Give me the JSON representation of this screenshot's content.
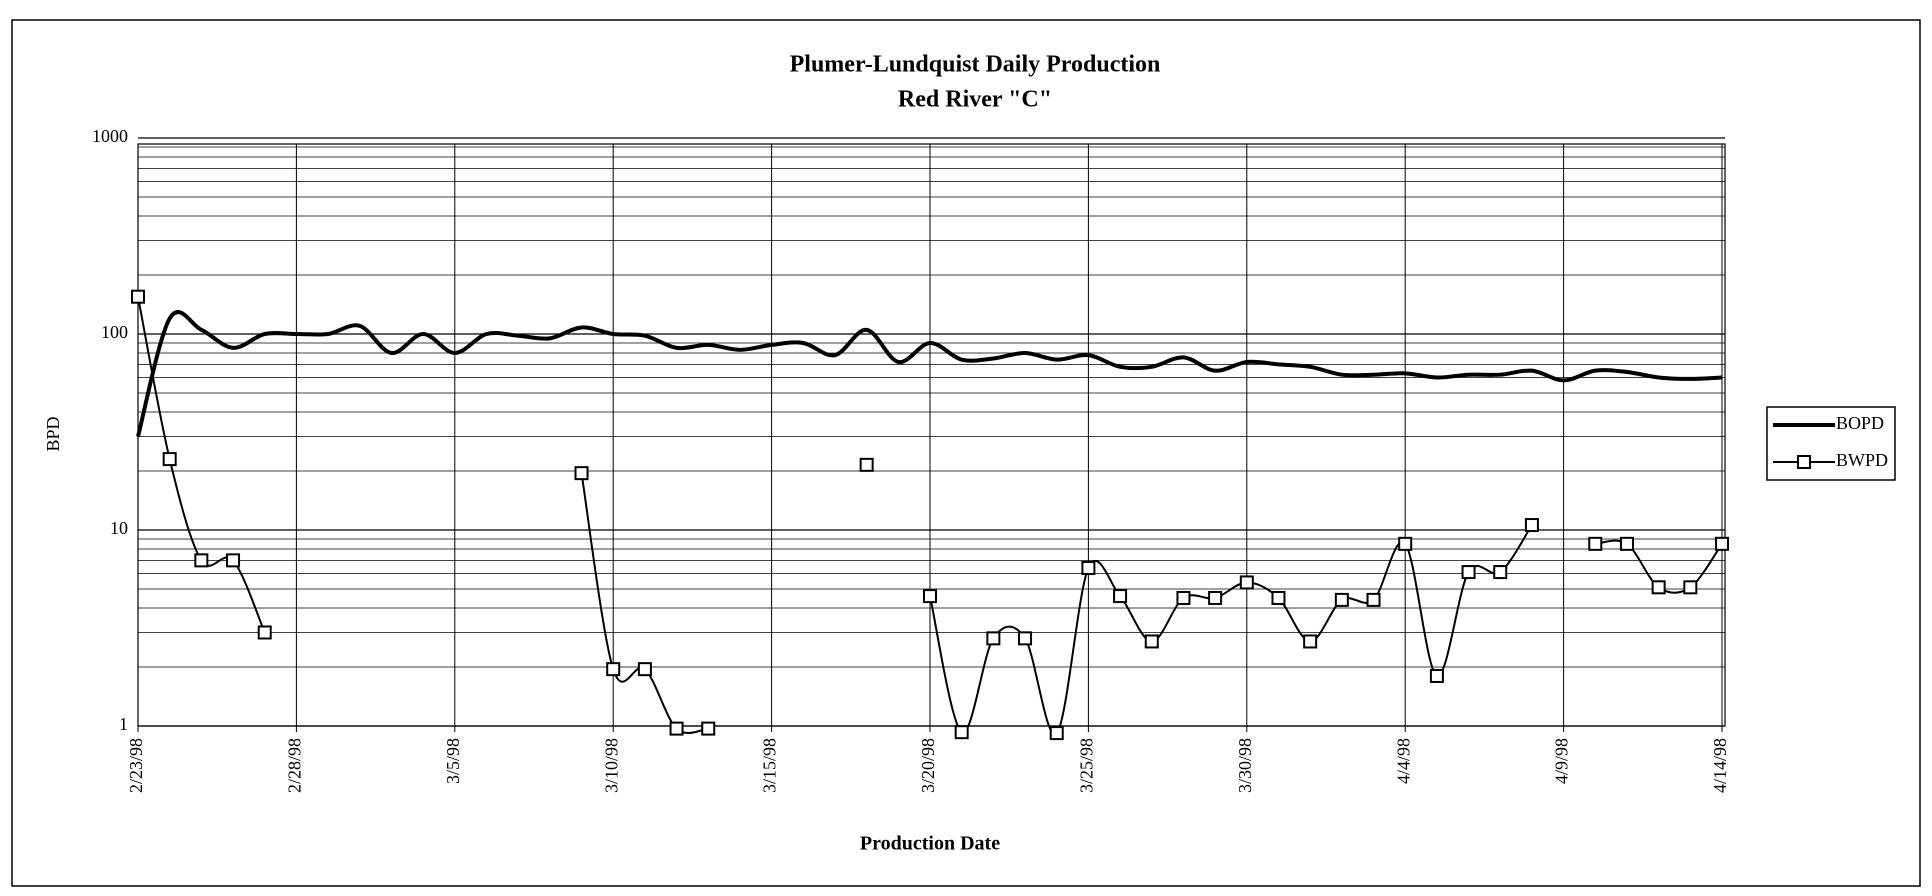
{
  "chart_data": {
    "type": "line",
    "title": "Plumer-Lundquist Daily Production",
    "subtitle": "Red River \"C\"",
    "y_label": "BPD",
    "x_label": "Production Date",
    "categories": [
      "2/23/98",
      null,
      null,
      null,
      null,
      "2/28/98",
      null,
      null,
      null,
      null,
      "3/5/98",
      null,
      null,
      null,
      null,
      "3/10/98",
      null,
      null,
      null,
      null,
      "3/15/98",
      null,
      null,
      null,
      null,
      "3/20/98",
      null,
      null,
      null,
      null,
      "3/25/98",
      null,
      null,
      null,
      null,
      "3/30/98",
      null,
      null,
      null,
      null,
      "4/4/98",
      null,
      null,
      null,
      null,
      "4/9/98",
      null,
      null,
      null,
      null,
      "4/14/98"
    ],
    "series": [
      {
        "name": "BOPD",
        "color": "#000000",
        "marker": "none",
        "values": [
          30,
          120,
          105,
          85,
          100,
          100,
          100,
          110,
          80,
          100,
          80,
          100,
          98,
          95,
          108,
          100,
          98,
          85,
          88,
          83,
          88,
          90,
          78,
          105,
          72,
          90,
          74,
          75,
          80,
          74,
          78,
          68,
          68,
          76,
          65,
          72,
          70,
          68,
          62,
          62,
          63,
          60,
          62,
          62,
          65,
          58,
          65,
          64,
          60,
          59,
          60
        ]
      },
      {
        "name": "BWPD",
        "color": "#000000",
        "marker": "square",
        "values": [
          155,
          23,
          7,
          7,
          3,
          null,
          null,
          null,
          null,
          null,
          null,
          null,
          null,
          null,
          19.5,
          1.95,
          1.95,
          0.97,
          0.97,
          null,
          null,
          null,
          null,
          21.5,
          null,
          4.6,
          0.93,
          2.8,
          2.8,
          0.92,
          6.4,
          4.6,
          2.7,
          4.5,
          4.5,
          5.4,
          4.5,
          2.7,
          4.4,
          4.4,
          8.5,
          1.8,
          6.1,
          6.1,
          10.6,
          null,
          8.5,
          8.5,
          5.1,
          5.1,
          8.5
        ]
      }
    ],
    "ylim": [
      1,
      1000
    ],
    "yticks": [
      1,
      10,
      100,
      1000
    ],
    "log_y": true,
    "minor_grid": true,
    "grid": true,
    "legend": "right"
  }
}
